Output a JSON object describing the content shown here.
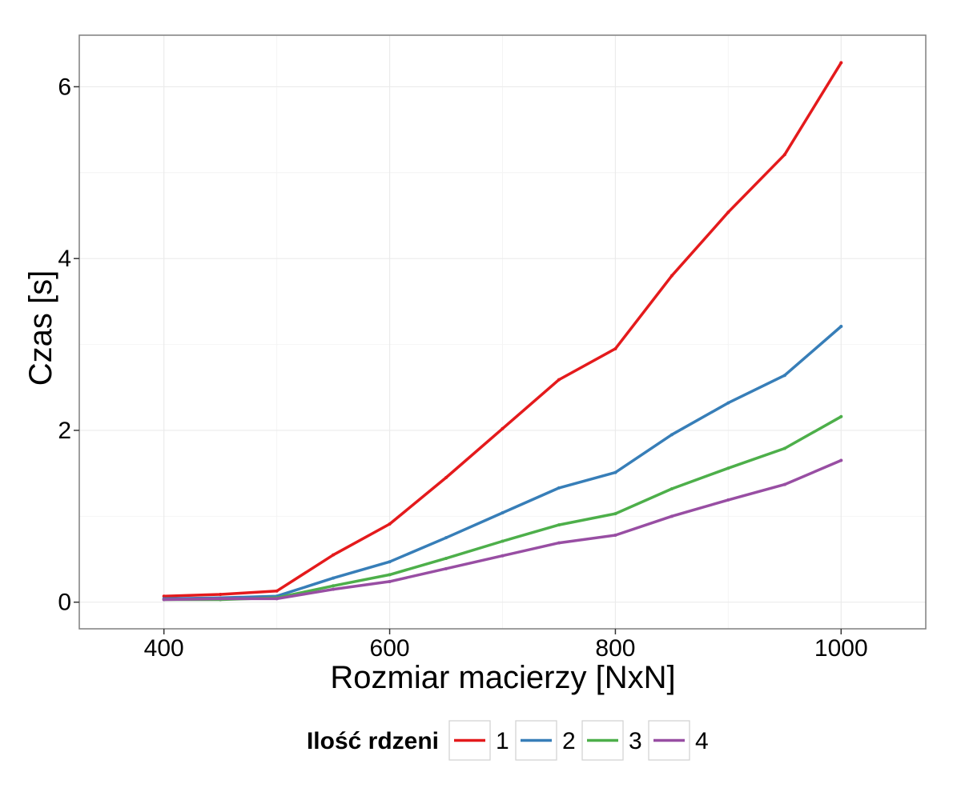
{
  "chart_data": {
    "type": "line",
    "xlabel": "Rozmiar macierzy [NxN]",
    "ylabel": "Czas [s]",
    "xlim": [
      325,
      1075
    ],
    "ylim": [
      -0.31,
      6.6
    ],
    "x_ticks": [
      400,
      600,
      800,
      1000
    ],
    "x_tick_labels": [
      "400",
      "600",
      "800",
      "1000"
    ],
    "y_ticks": [
      0,
      2,
      4,
      6
    ],
    "y_tick_labels": [
      "0",
      "2",
      "4",
      "6"
    ],
    "grid": true,
    "legend": {
      "title": "Ilość rdzeni",
      "position": "bottom"
    },
    "x": [
      400,
      450,
      500,
      550,
      600,
      650,
      700,
      750,
      800,
      850,
      900,
      950,
      1000
    ],
    "series": [
      {
        "name": "1",
        "color": "#e41a1c",
        "values": [
          0.07,
          0.09,
          0.13,
          0.55,
          0.91,
          1.45,
          2.02,
          2.59,
          2.95,
          3.8,
          4.54,
          5.21,
          6.28
        ]
      },
      {
        "name": "2",
        "color": "#377eb8",
        "values": [
          0.04,
          0.05,
          0.07,
          0.28,
          0.47,
          0.75,
          1.04,
          1.33,
          1.51,
          1.95,
          2.32,
          2.64,
          3.21
        ]
      },
      {
        "name": "3",
        "color": "#4daf4a",
        "values": [
          0.03,
          0.03,
          0.05,
          0.19,
          0.32,
          0.51,
          0.71,
          0.9,
          1.03,
          1.32,
          1.56,
          1.79,
          2.16
        ]
      },
      {
        "name": "4",
        "color": "#984ea3",
        "values": [
          0.03,
          0.04,
          0.04,
          0.15,
          0.24,
          0.39,
          0.54,
          0.69,
          0.78,
          1.0,
          1.19,
          1.37,
          1.65
        ]
      }
    ]
  }
}
